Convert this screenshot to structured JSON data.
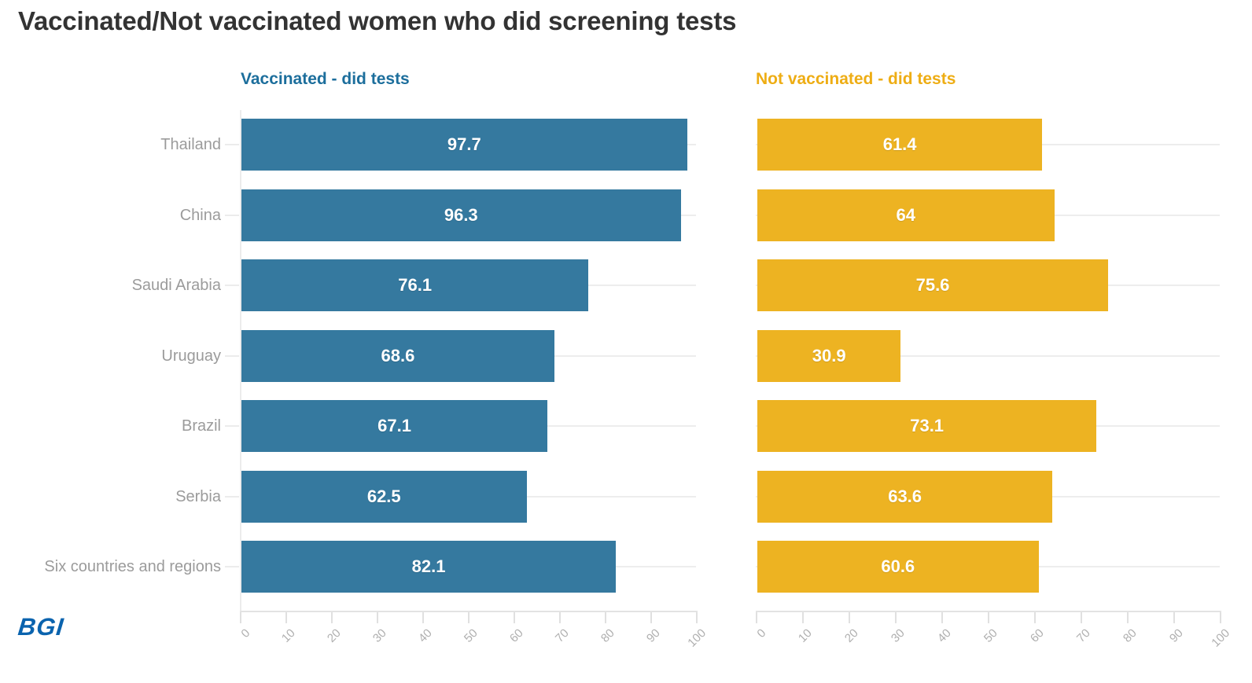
{
  "header": {
    "title": "Vaccinated/Not vaccinated women who did screening tests"
  },
  "chart_data": {
    "type": "bar",
    "orientation": "horizontal",
    "title": "Vaccinated/Not vaccinated women who did screening tests",
    "categories": [
      "Thailand",
      "China",
      "Saudi Arabia",
      "Uruguay",
      "Brazil",
      "Serbia",
      "Six countries and regions"
    ],
    "series": [
      {
        "name": "Vaccinated - did tests",
        "color": "#35799F",
        "title_color": "#1C6E9C",
        "values": [
          97.7,
          96.3,
          76.1,
          68.6,
          67.1,
          62.5,
          82.1
        ]
      },
      {
        "name": "Not vaccinated - did tests",
        "color": "#EDB322",
        "title_color": "#EEAD14",
        "values": [
          61.4,
          64,
          75.6,
          30.9,
          73.1,
          63.6,
          60.6
        ]
      }
    ],
    "xlim": [
      0,
      100
    ],
    "x_ticks": [
      0,
      10,
      20,
      30,
      40,
      50,
      60,
      70,
      80,
      90,
      100
    ],
    "x_tick_labels": [
      "0",
      "10",
      "20",
      "30",
      "40",
      "50",
      "60",
      "70",
      "80",
      "90",
      "100"
    ],
    "grid": "horizontal row lines, light gray, behind bars",
    "legend_position": "series titles above each panel",
    "value_labels": "centered inside bars, white bold",
    "category_label_color": "#9B9B9B",
    "tick_label_color": "#AFAFAF"
  },
  "footer": {
    "logo_text": "BGI",
    "logo_color": "#0A63AE"
  }
}
